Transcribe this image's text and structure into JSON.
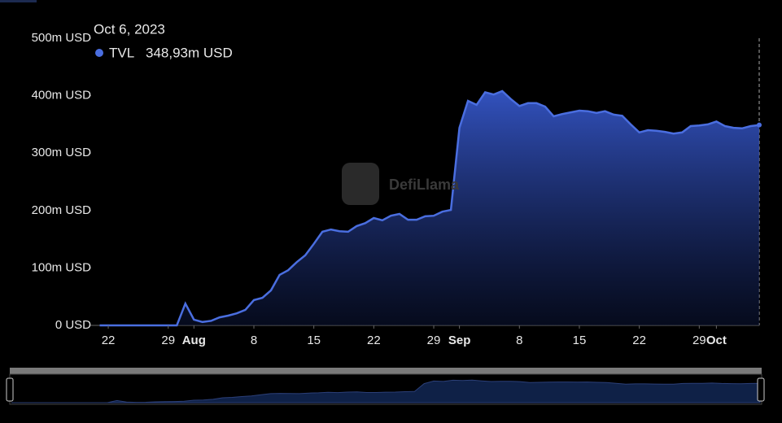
{
  "chart_data": {
    "type": "area",
    "watermark": "DefiLlama",
    "series": [
      {
        "name": "TVL",
        "color": "#4a6ee0",
        "values": [
          0,
          0,
          0,
          0,
          0,
          0,
          0,
          0,
          0,
          0,
          38,
          10,
          6,
          8,
          14,
          17,
          21,
          27,
          44,
          48,
          61,
          88,
          96,
          110,
          122,
          142,
          163,
          167,
          164,
          163,
          173,
          178,
          187,
          183,
          191,
          194,
          184,
          184,
          190,
          191,
          198,
          201,
          344,
          391,
          384,
          406,
          402,
          408,
          394,
          382,
          387,
          387,
          381,
          364,
          368,
          371,
          374,
          373,
          370,
          373,
          367,
          365,
          350,
          336,
          340,
          339,
          337,
          334,
          336,
          347,
          348,
          350,
          355,
          347,
          344,
          343,
          347,
          348.93
        ]
      }
    ],
    "x": [
      "2023-07-21",
      "2023-07-22",
      "2023-07-23",
      "2023-07-24",
      "2023-07-25",
      "2023-07-26",
      "2023-07-27",
      "2023-07-28",
      "2023-07-29",
      "2023-07-30",
      "2023-07-31",
      "2023-08-01",
      "2023-08-02",
      "2023-08-03",
      "2023-08-04",
      "2023-08-05",
      "2023-08-06",
      "2023-08-07",
      "2023-08-08",
      "2023-08-09",
      "2023-08-10",
      "2023-08-11",
      "2023-08-12",
      "2023-08-13",
      "2023-08-14",
      "2023-08-15",
      "2023-08-16",
      "2023-08-17",
      "2023-08-18",
      "2023-08-19",
      "2023-08-20",
      "2023-08-21",
      "2023-08-22",
      "2023-08-23",
      "2023-08-24",
      "2023-08-25",
      "2023-08-26",
      "2023-08-27",
      "2023-08-28",
      "2023-08-29",
      "2023-08-30",
      "2023-08-31",
      "2023-09-01",
      "2023-09-02",
      "2023-09-03",
      "2023-09-04",
      "2023-09-05",
      "2023-09-06",
      "2023-09-07",
      "2023-09-08",
      "2023-09-09",
      "2023-09-10",
      "2023-09-11",
      "2023-09-12",
      "2023-09-13",
      "2023-09-14",
      "2023-09-15",
      "2023-09-16",
      "2023-09-17",
      "2023-09-18",
      "2023-09-19",
      "2023-09-20",
      "2023-09-21",
      "2023-09-22",
      "2023-09-23",
      "2023-09-24",
      "2023-09-25",
      "2023-09-26",
      "2023-09-27",
      "2023-09-28",
      "2023-09-29",
      "2023-09-30",
      "2023-10-01",
      "2023-10-02",
      "2023-10-03",
      "2023-10-04",
      "2023-10-05",
      "2023-10-06"
    ],
    "xlim": [
      "2023-07-20",
      "2023-10-06"
    ],
    "xticks": [
      {
        "value": "2023-07-22",
        "label": "22"
      },
      {
        "value": "2023-07-29",
        "label": "29"
      },
      {
        "value": "2023-08-01",
        "label": "Aug"
      },
      {
        "value": "2023-08-08",
        "label": "8"
      },
      {
        "value": "2023-08-15",
        "label": "15"
      },
      {
        "value": "2023-08-22",
        "label": "22"
      },
      {
        "value": "2023-08-29",
        "label": "29"
      },
      {
        "value": "2023-09-01",
        "label": "Sep"
      },
      {
        "value": "2023-09-08",
        "label": "8"
      },
      {
        "value": "2023-09-15",
        "label": "15"
      },
      {
        "value": "2023-09-22",
        "label": "22"
      },
      {
        "value": "2023-09-29",
        "label": "29"
      },
      {
        "value": "2023-10-01",
        "label": "Oct"
      }
    ],
    "ylim": [
      0,
      500
    ],
    "yticks": [
      {
        "value": 0,
        "label": "0 USD"
      },
      {
        "value": 100,
        "label": "100m USD"
      },
      {
        "value": 200,
        "label": "200m USD"
      },
      {
        "value": 300,
        "label": "300m USD"
      },
      {
        "value": 400,
        "label": "400m USD"
      },
      {
        "value": 500,
        "label": "500m USD"
      }
    ],
    "tooltip": {
      "date": "Oct 6, 2023",
      "name": "TVL",
      "value": 348.93,
      "value_label": "348,93m USD"
    }
  }
}
